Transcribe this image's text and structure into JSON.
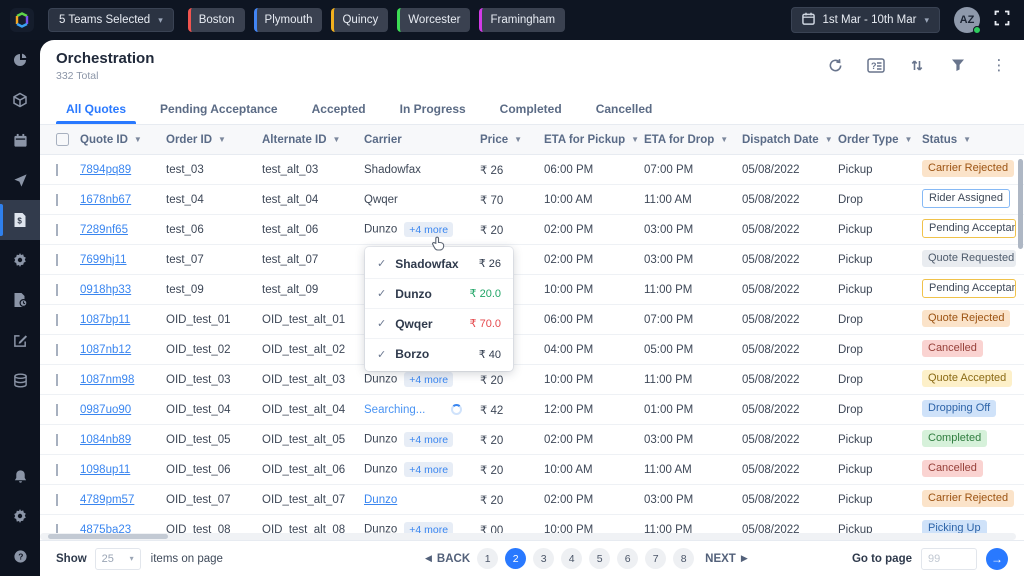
{
  "topbar": {
    "teams_selected": "5 Teams Selected",
    "teams": [
      {
        "name": "Boston",
        "color": "#f0544f"
      },
      {
        "name": "Plymouth",
        "color": "#4285f4"
      },
      {
        "name": "Quincy",
        "color": "#f2b01e"
      },
      {
        "name": "Worcester",
        "color": "#3ddc55"
      },
      {
        "name": "Framingham",
        "color": "#d23be7"
      }
    ],
    "date_range": "1st Mar - 10th Mar",
    "avatar_initials": "AZ"
  },
  "sidebar": {
    "items": [
      {
        "name": "dashboard-icon",
        "active": false
      },
      {
        "name": "orders-icon",
        "active": false
      },
      {
        "name": "schedule-icon",
        "active": false
      },
      {
        "name": "dispatch-icon",
        "active": false
      },
      {
        "name": "quotes-icon",
        "active": true
      },
      {
        "name": "cog-icon",
        "active": false
      },
      {
        "name": "reports-icon",
        "active": false
      },
      {
        "name": "edit-icon",
        "active": false
      },
      {
        "name": "data-icon",
        "active": false
      },
      {
        "name": "alerts-icon",
        "active": false,
        "bottom": true
      },
      {
        "name": "settings-icon",
        "active": false
      },
      {
        "name": "help-icon",
        "active": false
      }
    ]
  },
  "header": {
    "title": "Orchestration",
    "subtitle": "332 Total",
    "icons": [
      "refresh-icon",
      "column-help-icon",
      "sort-icon",
      "filter-icon",
      "kebab-icon"
    ]
  },
  "tabs": [
    {
      "label": "All Quotes",
      "active": true
    },
    {
      "label": "Pending Acceptance",
      "active": false
    },
    {
      "label": "Accepted",
      "active": false
    },
    {
      "label": "In Progress",
      "active": false
    },
    {
      "label": "Completed",
      "active": false
    },
    {
      "label": "Cancelled",
      "active": false
    }
  ],
  "table": {
    "columns": [
      {
        "label": "Quote ID",
        "sortable": true
      },
      {
        "label": "Order ID",
        "sortable": true
      },
      {
        "label": "Alternate ID",
        "sortable": true
      },
      {
        "label": "Carrier",
        "sortable": false
      },
      {
        "label": "Price",
        "sortable": true
      },
      {
        "label": "ETA for Pickup",
        "sortable": true
      },
      {
        "label": "ETA for Drop",
        "sortable": true
      },
      {
        "label": "Dispatch Date",
        "sortable": true
      },
      {
        "label": "Order Type",
        "sortable": true
      },
      {
        "label": "Status",
        "sortable": true
      }
    ],
    "rows": [
      {
        "quote_id": "7894pq89",
        "order_id": "test_03",
        "alt_id": "test_alt_03",
        "carrier": "Shadowfax",
        "carrier_variant": "plain",
        "price": "₹ 26",
        "eta_pickup": "06:00 PM",
        "eta_drop": "07:00 PM",
        "dispatch_date": "05/08/2022",
        "order_type": "Pickup",
        "status": "Carrier Rejected",
        "status_variant": "v-orange"
      },
      {
        "quote_id": "1678nb67",
        "order_id": "test_04",
        "alt_id": "test_alt_04",
        "carrier": "Qwqer",
        "carrier_variant": "plain",
        "price": "₹ 70",
        "eta_pickup": "10:00 AM",
        "eta_drop": "11:00 AM",
        "dispatch_date": "05/08/2022",
        "order_type": "Drop",
        "status": "Rider Assigned",
        "status_variant": "v-outline-blue"
      },
      {
        "quote_id": "7289nf65",
        "order_id": "test_06",
        "alt_id": "test_alt_06",
        "carrier": "Dunzo",
        "carrier_variant": "more",
        "more_label": "+4 more",
        "price": "₹ 20",
        "eta_pickup": "02:00 PM",
        "eta_drop": "03:00 PM",
        "dispatch_date": "05/08/2022",
        "order_type": "Pickup",
        "status": "Pending Acceptance",
        "status_variant": "v-outline-yellow"
      },
      {
        "quote_id": "7699hj11",
        "order_id": "test_07",
        "alt_id": "test_alt_07",
        "carrier": "",
        "carrier_variant": "hidden",
        "price": "",
        "eta_pickup": "02:00 PM",
        "eta_drop": "03:00 PM",
        "dispatch_date": "05/08/2022",
        "order_type": "Pickup",
        "status": "Quote Requested",
        "status_variant": "v-gray"
      },
      {
        "quote_id": "0918hp33",
        "order_id": "test_09",
        "alt_id": "test_alt_09",
        "carrier": "",
        "carrier_variant": "hidden",
        "price": "",
        "eta_pickup": "10:00 PM",
        "eta_drop": "11:00 PM",
        "dispatch_date": "05/08/2022",
        "order_type": "Pickup",
        "status": "Pending Acceptance",
        "status_variant": "v-outline-yellow"
      },
      {
        "quote_id": "1087bp11",
        "order_id": "OID_test_01",
        "alt_id": "OID_test_alt_01",
        "carrier": "",
        "carrier_variant": "hidden",
        "price": "",
        "eta_pickup": "06:00 PM",
        "eta_drop": "07:00 PM",
        "dispatch_date": "05/08/2022",
        "order_type": "Drop",
        "status": "Quote Rejected",
        "status_variant": "v-orange"
      },
      {
        "quote_id": "1087nb12",
        "order_id": "OID_test_02",
        "alt_id": "OID_test_alt_02",
        "carrier": "",
        "carrier_variant": "hidden",
        "price": "",
        "eta_pickup": "04:00 PM",
        "eta_drop": "05:00 PM",
        "dispatch_date": "05/08/2022",
        "order_type": "Drop",
        "status": "Cancelled",
        "status_variant": "v-red"
      },
      {
        "quote_id": "1087nm98",
        "order_id": "OID_test_03",
        "alt_id": "OID_test_alt_03",
        "carrier": "Dunzo",
        "carrier_variant": "more",
        "more_label": "+4 more",
        "price": "₹ 20",
        "eta_pickup": "10:00 PM",
        "eta_drop": "11:00 PM",
        "dispatch_date": "05/08/2022",
        "order_type": "Drop",
        "status": "Quote Accepted",
        "status_variant": "v-yellow"
      },
      {
        "quote_id": "0987uo90",
        "order_id": "OID_test_04",
        "alt_id": "OID_test_alt_04",
        "carrier": "Searching...",
        "carrier_variant": "searching",
        "price": "₹ 42",
        "eta_pickup": "12:00 PM",
        "eta_drop": "01:00 PM",
        "dispatch_date": "05/08/2022",
        "order_type": "Drop",
        "status": "Dropping Off",
        "status_variant": "v-blue"
      },
      {
        "quote_id": "1084nb89",
        "order_id": "OID_test_05",
        "alt_id": "OID_test_alt_05",
        "carrier": "Dunzo",
        "carrier_variant": "more",
        "more_label": "+4 more",
        "price": "₹ 20",
        "eta_pickup": "02:00 PM",
        "eta_drop": "03:00 PM",
        "dispatch_date": "05/08/2022",
        "order_type": "Pickup",
        "status": "Completed",
        "status_variant": "v-green"
      },
      {
        "quote_id": "1098up11",
        "order_id": "OID_test_06",
        "alt_id": "OID_test_alt_06",
        "carrier": "Dunzo",
        "carrier_variant": "more",
        "more_label": "+4 more",
        "price": "₹ 20",
        "eta_pickup": "10:00 AM",
        "eta_drop": "11:00 AM",
        "dispatch_date": "05/08/2022",
        "order_type": "Pickup",
        "status": "Cancelled",
        "status_variant": "v-red"
      },
      {
        "quote_id": "4789pm57",
        "order_id": "OID_test_07",
        "alt_id": "OID_test_alt_07",
        "carrier": "Dunzo",
        "carrier_variant": "link",
        "price": "₹ 20",
        "eta_pickup": "02:00 PM",
        "eta_drop": "03:00 PM",
        "dispatch_date": "05/08/2022",
        "order_type": "Pickup",
        "status": "Carrier Rejected",
        "status_variant": "v-orange"
      },
      {
        "quote_id": "4875ba23",
        "order_id": "OID_test_08",
        "alt_id": "OID_test_alt_08",
        "carrier": "Dunzo",
        "carrier_variant": "more",
        "more_label": "+4 more",
        "price": "₹ 00",
        "eta_pickup": "10:00 PM",
        "eta_drop": "11:00 PM",
        "dispatch_date": "05/08/2022",
        "order_type": "Pickup",
        "status": "Picking Up",
        "status_variant": "v-blue"
      }
    ]
  },
  "carrier_popup": {
    "items": [
      {
        "name": "Shadowfax",
        "price": "₹ 26",
        "price_color": "#2f3a4c"
      },
      {
        "name": "Dunzo",
        "price": "₹ 20.0",
        "price_color": "#21a567"
      },
      {
        "name": "Qwqer",
        "price": "₹ 70.0",
        "price_color": "#e5494d"
      },
      {
        "name": "Borzo",
        "price": "₹ 40",
        "price_color": "#2f3a4c"
      }
    ]
  },
  "footer": {
    "show_label": "Show",
    "page_size": "25",
    "items_label": "items on page",
    "back_label": "BACK",
    "next_label": "NEXT",
    "pages": [
      "1",
      "2",
      "3",
      "4",
      "5",
      "6",
      "7",
      "8"
    ],
    "active_page": "2",
    "goto_label": "Go to page",
    "goto_placeholder": "99"
  }
}
